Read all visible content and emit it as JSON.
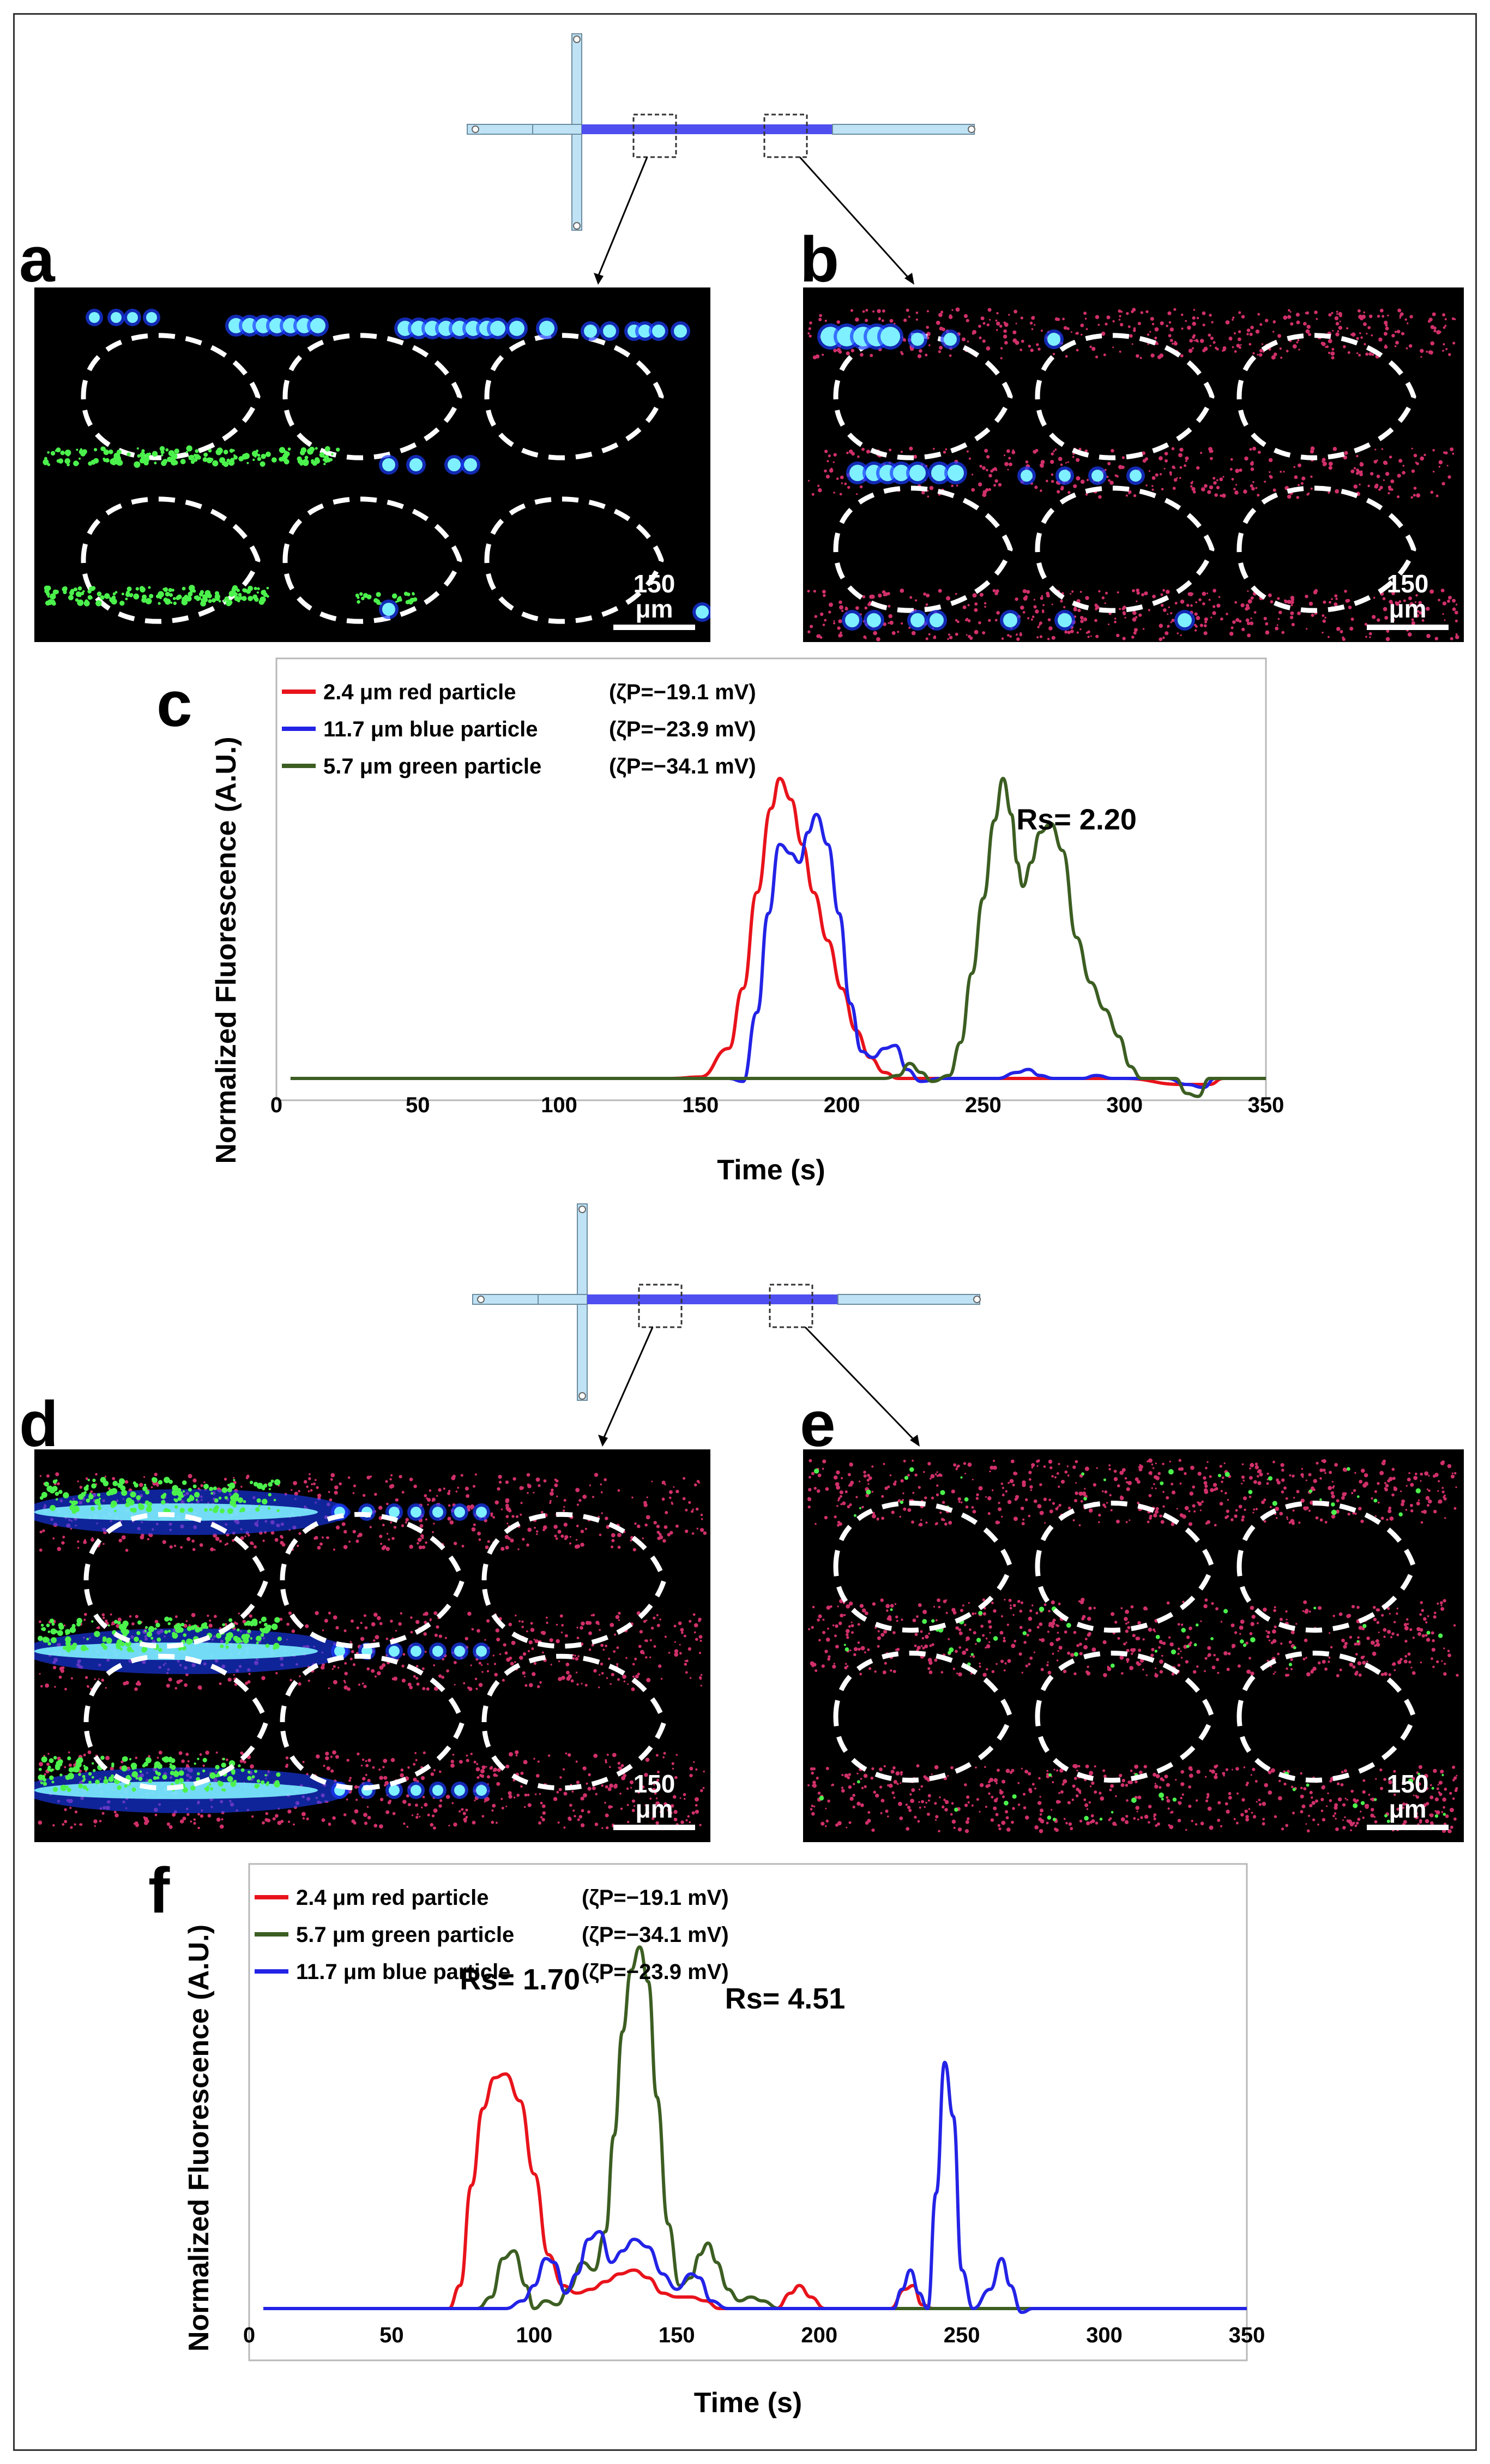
{
  "panels": {
    "a": "a",
    "b": "b",
    "c": "c",
    "d": "d",
    "e": "e",
    "f": "f"
  },
  "scale_bar": "150 μm",
  "colors": {
    "red": "#e8131b",
    "blue": "#2323e6",
    "green": "#3c5e22",
    "channel_fill": "#bfe3f5",
    "channel_posts": "#4f4ff0"
  },
  "chart_data": [
    {
      "id": "c",
      "type": "line",
      "xlabel": "Time (s)",
      "ylabel": "Normalized  Fluorescence (A.U.)",
      "xlim": [
        0,
        350
      ],
      "x_ticks": [
        "0",
        "50",
        "100",
        "150",
        "200",
        "250",
        "300",
        "350"
      ],
      "annotations": [
        {
          "text": "Rs= 2.20",
          "x": 283,
          "y": 0.83
        }
      ],
      "series": [
        {
          "name": "2.4 μm red particle",
          "zeta": "(ζP=−19.1 mV)",
          "color": "red",
          "points": [
            [
              5,
              0
            ],
            [
              140,
              0
            ],
            [
              150,
              0.005
            ],
            [
              160,
              0.1
            ],
            [
              165,
              0.3
            ],
            [
              170,
              0.62
            ],
            [
              175,
              0.9
            ],
            [
              178,
              1.0
            ],
            [
              182,
              0.93
            ],
            [
              186,
              0.78
            ],
            [
              190,
              0.62
            ],
            [
              195,
              0.46
            ],
            [
              200,
              0.3
            ],
            [
              205,
              0.16
            ],
            [
              210,
              0.07
            ],
            [
              215,
              0.02
            ],
            [
              220,
              0
            ],
            [
              300,
              0
            ],
            [
              320,
              -0.02
            ],
            [
              330,
              -0.02
            ],
            [
              335,
              0
            ],
            [
              350,
              0
            ]
          ]
        },
        {
          "name": "11.7 μm blue particle",
          "zeta": "(ζP=−23.9 mV)",
          "color": "blue",
          "points": [
            [
              5,
              0
            ],
            [
              160,
              0
            ],
            [
              165,
              -0.01
            ],
            [
              170,
              0.22
            ],
            [
              174,
              0.55
            ],
            [
              178,
              0.78
            ],
            [
              182,
              0.75
            ],
            [
              185,
              0.72
            ],
            [
              188,
              0.82
            ],
            [
              191,
              0.88
            ],
            [
              195,
              0.78
            ],
            [
              199,
              0.55
            ],
            [
              203,
              0.25
            ],
            [
              207,
              0.09
            ],
            [
              211,
              0.07
            ],
            [
              215,
              0.1
            ],
            [
              219,
              0.11
            ],
            [
              223,
              0.03
            ],
            [
              228,
              -0.01
            ],
            [
              235,
              0
            ],
            [
              255,
              0
            ],
            [
              262,
              0.02
            ],
            [
              266,
              0.03
            ],
            [
              270,
              0.01
            ],
            [
              275,
              0
            ],
            [
              285,
              0
            ],
            [
              290,
              0.01
            ],
            [
              296,
              0
            ],
            [
              315,
              0
            ],
            [
              322,
              -0.02
            ],
            [
              328,
              -0.03
            ],
            [
              332,
              0
            ],
            [
              350,
              0
            ]
          ]
        },
        {
          "name": "5.7 μm green particle",
          "zeta": "(ζP=−34.1 mV)",
          "color": "green",
          "points": [
            [
              5,
              0
            ],
            [
              215,
              0
            ],
            [
              220,
              0.01
            ],
            [
              224,
              0.05
            ],
            [
              228,
              0.02
            ],
            [
              232,
              -0.01
            ],
            [
              238,
              0.01
            ],
            [
              242,
              0.12
            ],
            [
              246,
              0.35
            ],
            [
              250,
              0.6
            ],
            [
              254,
              0.86
            ],
            [
              257,
              1.0
            ],
            [
              260,
              0.88
            ],
            [
              262,
              0.72
            ],
            [
              264,
              0.64
            ],
            [
              267,
              0.72
            ],
            [
              270,
              0.82
            ],
            [
              274,
              0.85
            ],
            [
              278,
              0.76
            ],
            [
              283,
              0.47
            ],
            [
              288,
              0.32
            ],
            [
              293,
              0.23
            ],
            [
              298,
              0.14
            ],
            [
              302,
              0.04
            ],
            [
              306,
              0
            ],
            [
              318,
              0
            ],
            [
              322,
              -0.05
            ],
            [
              326,
              -0.06
            ],
            [
              330,
              0
            ],
            [
              350,
              0
            ]
          ]
        }
      ]
    },
    {
      "id": "f",
      "type": "line",
      "xlabel": "Time (s)",
      "ylabel": "Normalized Fluorescence (A.U.)",
      "xlim": [
        0,
        350
      ],
      "x_ticks": [
        "0",
        "50",
        "100",
        "150",
        "200",
        "250",
        "300",
        "350"
      ],
      "annotations": [
        {
          "text": "Rs= 1.70",
          "x": 95,
          "y": 0.83
        },
        {
          "text": "Rs= 4.51",
          "x": 188,
          "y": 0.78
        }
      ],
      "series": [
        {
          "name": "2.4 μm red particle",
          "zeta": "(ζP=−19.1 mV)",
          "color": "red",
          "points": [
            [
              5,
              0
            ],
            [
              70,
              0
            ],
            [
              74,
              0.06
            ],
            [
              78,
              0.32
            ],
            [
              82,
              0.52
            ],
            [
              86,
              0.6
            ],
            [
              90,
              0.61
            ],
            [
              95,
              0.54
            ],
            [
              100,
              0.35
            ],
            [
              105,
              0.14
            ],
            [
              110,
              0.06
            ],
            [
              115,
              0.04
            ],
            [
              120,
              0.05
            ],
            [
              125,
              0.07
            ],
            [
              130,
              0.09
            ],
            [
              135,
              0.1
            ],
            [
              140,
              0.08
            ],
            [
              145,
              0.04
            ],
            [
              150,
              0.03
            ],
            [
              155,
              0.03
            ],
            [
              160,
              0.02
            ],
            [
              165,
              0
            ],
            [
              185,
              0
            ],
            [
              190,
              0.04
            ],
            [
              193,
              0.06
            ],
            [
              197,
              0.03
            ],
            [
              202,
              0
            ],
            [
              225,
              0
            ],
            [
              230,
              0.05
            ],
            [
              233,
              0.06
            ],
            [
              236,
              0.01
            ],
            [
              240,
              0
            ],
            [
              350,
              0
            ]
          ]
        },
        {
          "name": "5.7 μm green particle",
          "zeta": "(ζP=−34.1 mV)",
          "color": "green",
          "points": [
            [
              5,
              0
            ],
            [
              80,
              0
            ],
            [
              85,
              0.03
            ],
            [
              89,
              0.13
            ],
            [
              93,
              0.15
            ],
            [
              97,
              0.06
            ],
            [
              100,
              0
            ],
            [
              104,
              0.02
            ],
            [
              108,
              0.01
            ],
            [
              112,
              0.05
            ],
            [
              117,
              0.12
            ],
            [
              121,
              0.1
            ],
            [
              125,
              0.2
            ],
            [
              128,
              0.45
            ],
            [
              131,
              0.72
            ],
            [
              134,
              0.88
            ],
            [
              137,
              0.94
            ],
            [
              140,
              0.85
            ],
            [
              143,
              0.55
            ],
            [
              147,
              0.22
            ],
            [
              151,
              0.06
            ],
            [
              155,
              0.08
            ],
            [
              158,
              0.14
            ],
            [
              161,
              0.17
            ],
            [
              164,
              0.12
            ],
            [
              168,
              0.05
            ],
            [
              172,
              0.02
            ],
            [
              176,
              0.03
            ],
            [
              180,
              0.02
            ],
            [
              186,
              0
            ],
            [
              350,
              0
            ]
          ]
        },
        {
          "name": "11.7 μm blue particle",
          "zeta": "(ζP=−23.9 mV)",
          "color": "blue",
          "points": [
            [
              5,
              0
            ],
            [
              90,
              0
            ],
            [
              96,
              0.02
            ],
            [
              100,
              0.06
            ],
            [
              104,
              0.13
            ],
            [
              107,
              0.12
            ],
            [
              111,
              0.04
            ],
            [
              115,
              0.09
            ],
            [
              119,
              0.18
            ],
            [
              123,
              0.2
            ],
            [
              127,
              0.12
            ],
            [
              131,
              0.15
            ],
            [
              135,
              0.18
            ],
            [
              140,
              0.16
            ],
            [
              145,
              0.09
            ],
            [
              150,
              0.05
            ],
            [
              155,
              0.09
            ],
            [
              158,
              0.08
            ],
            [
              162,
              0.02
            ],
            [
              168,
              0
            ],
            [
              226,
              0
            ],
            [
              229,
              0.05
            ],
            [
              232,
              0.1
            ],
            [
              235,
              0.04
            ],
            [
              238,
              0
            ],
            [
              241,
              0.3
            ],
            [
              244,
              0.64
            ],
            [
              247,
              0.5
            ],
            [
              250,
              0.1
            ],
            [
              254,
              0
            ],
            [
              260,
              0.05
            ],
            [
              264,
              0.13
            ],
            [
              267,
              0.06
            ],
            [
              271,
              -0.01
            ],
            [
              275,
              0
            ],
            [
              350,
              0
            ]
          ]
        }
      ]
    }
  ]
}
